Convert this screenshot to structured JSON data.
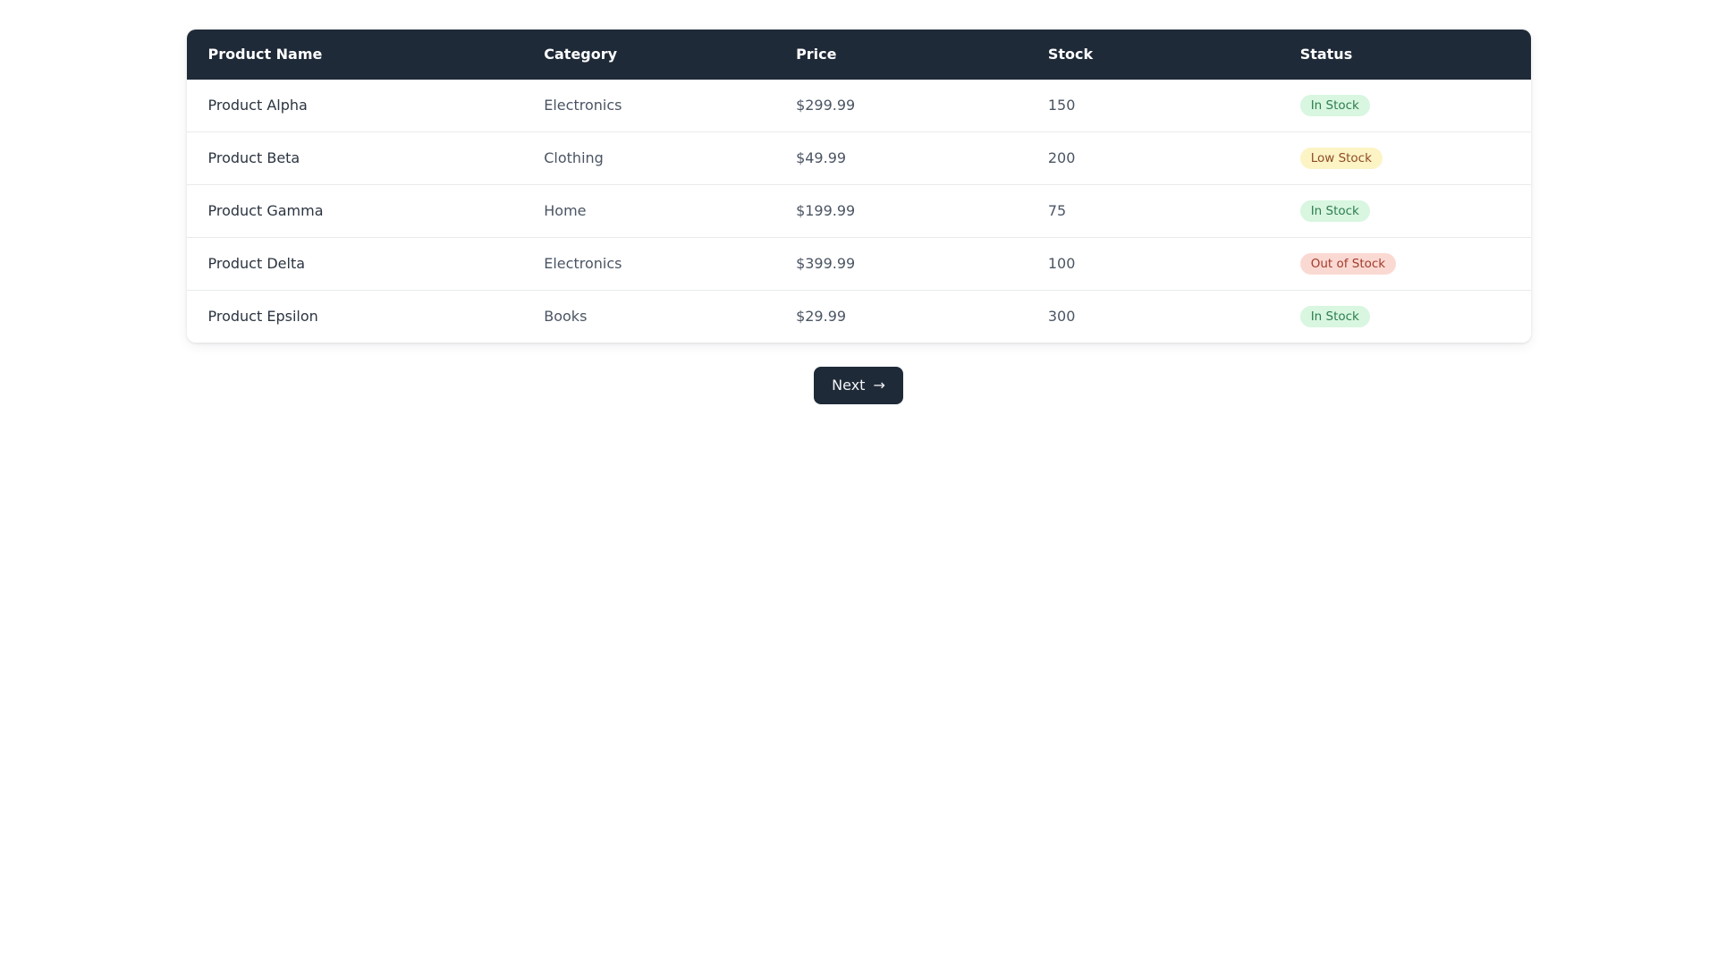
{
  "table": {
    "columns": [
      "Product Name",
      "Category",
      "Price",
      "Stock",
      "Status"
    ],
    "rows": [
      {
        "name": "Product Alpha",
        "category": "Electronics",
        "price": "$299.99",
        "stock": "150",
        "status": {
          "label": "In Stock",
          "type": "in_stock"
        }
      },
      {
        "name": "Product Beta",
        "category": "Clothing",
        "price": "$49.99",
        "stock": "200",
        "status": {
          "label": "Low Stock",
          "type": "low_stock"
        }
      },
      {
        "name": "Product Gamma",
        "category": "Home",
        "price": "$199.99",
        "stock": "75",
        "status": {
          "label": "In Stock",
          "type": "in_stock"
        }
      },
      {
        "name": "Product Delta",
        "category": "Electronics",
        "price": "$399.99",
        "stock": "100",
        "status": {
          "label": "Out of Stock",
          "type": "out_of_stock"
        }
      },
      {
        "name": "Product Epsilon",
        "category": "Books",
        "price": "$29.99",
        "stock": "300",
        "status": {
          "label": "In Stock",
          "type": "in_stock"
        }
      }
    ]
  },
  "status_colors": {
    "in_stock": {
      "bg": "#d8f6e0",
      "text": "#2e7d4e"
    },
    "low_stock": {
      "bg": "#fcf4c5",
      "text": "#8f4b26"
    },
    "out_of_stock": {
      "bg": "#fbd9d3",
      "text": "#a03c2c"
    }
  },
  "colors": {
    "header_bg": "#1f2a38",
    "button_bg": "#1f2a38"
  },
  "pagination": {
    "next_label": "Next",
    "next_icon": "→"
  }
}
